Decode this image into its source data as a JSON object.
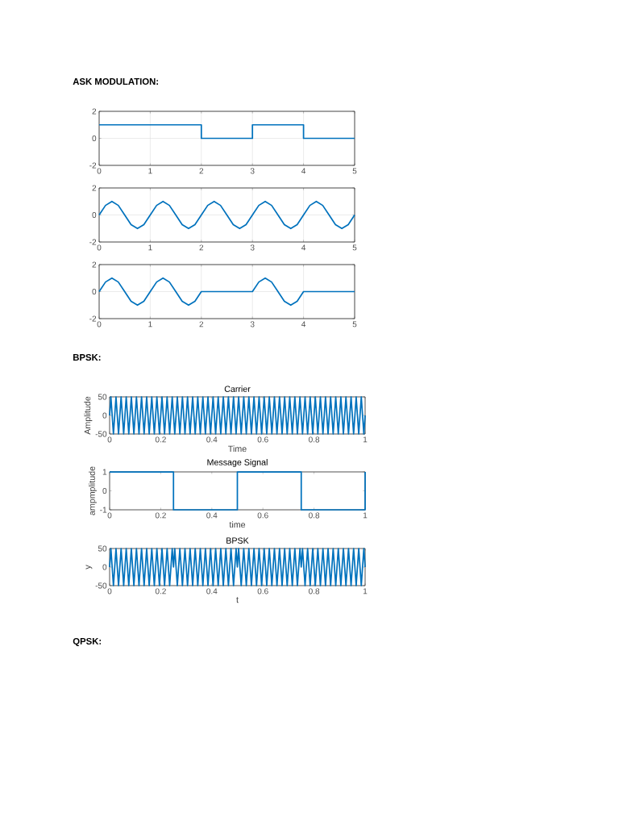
{
  "chart_data": [
    {
      "type": "line",
      "annotations": [
        "ASK MODULATION:"
      ],
      "color": "#0072bd",
      "grid": true,
      "xlim": [
        0,
        5
      ],
      "ylim": [
        -2,
        2
      ],
      "xticks": [
        0,
        1,
        2,
        3,
        4,
        5
      ],
      "yticks": [
        -2,
        0,
        2
      ],
      "x": [
        0,
        2,
        2,
        3,
        3,
        4,
        4,
        5
      ],
      "values": [
        1,
        1,
        0,
        0,
        1,
        1,
        0,
        0
      ]
    },
    {
      "type": "line",
      "color": "#0072bd",
      "grid": true,
      "xlim": [
        0,
        5
      ],
      "ylim": [
        -2,
        2
      ],
      "xticks": [
        0,
        1,
        2,
        3,
        4,
        5
      ],
      "yticks": [
        -2,
        0,
        2
      ],
      "x": [
        0,
        0.125,
        0.25,
        0.375,
        0.5,
        0.625,
        0.75,
        0.875,
        1,
        1.125,
        1.25,
        1.375,
        1.5,
        1.625,
        1.75,
        1.875,
        2,
        2.125,
        2.25,
        2.375,
        2.5,
        2.625,
        2.75,
        2.875,
        3,
        3.125,
        3.25,
        3.375,
        3.5,
        3.625,
        3.75,
        3.875,
        4,
        4.125,
        4.25,
        4.375,
        4.5,
        4.625,
        4.75,
        4.875,
        5
      ],
      "values": [
        0,
        0.71,
        1,
        0.71,
        0,
        -0.71,
        -1,
        -0.71,
        0,
        0.71,
        1,
        0.71,
        0,
        -0.71,
        -1,
        -0.71,
        0,
        0.71,
        1,
        0.71,
        0,
        -0.71,
        -1,
        -0.71,
        0,
        0.71,
        1,
        0.71,
        0,
        -0.71,
        -1,
        -0.71,
        0,
        0.71,
        1,
        0.71,
        0,
        -0.71,
        -1,
        -0.71,
        0
      ]
    },
    {
      "type": "line",
      "color": "#0072bd",
      "grid": true,
      "xlim": [
        0,
        5
      ],
      "ylim": [
        -2,
        2
      ],
      "xticks": [
        0,
        1,
        2,
        3,
        4,
        5
      ],
      "yticks": [
        -2,
        0,
        2
      ],
      "x": [
        0,
        0.125,
        0.25,
        0.375,
        0.5,
        0.625,
        0.75,
        0.875,
        1,
        1.125,
        1.25,
        1.375,
        1.5,
        1.625,
        1.75,
        1.875,
        2,
        3,
        3.125,
        3.25,
        3.375,
        3.5,
        3.625,
        3.75,
        3.875,
        4,
        5
      ],
      "values": [
        0,
        0.71,
        1,
        0.71,
        0,
        -0.71,
        -1,
        -0.71,
        0,
        0.71,
        1,
        0.71,
        0,
        -0.71,
        -1,
        -0.71,
        0,
        0,
        0.71,
        1,
        0.71,
        0,
        -0.71,
        -1,
        -0.71,
        0,
        0
      ]
    },
    {
      "type": "line",
      "title": "Carrier",
      "xlabel": "Time",
      "ylabel": "Amplitude",
      "annotations": [
        "BPSK:"
      ],
      "color": "#0072bd",
      "xlim": [
        0,
        1
      ],
      "ylim": [
        -50,
        50
      ],
      "xticks": [
        0,
        0.2,
        0.4,
        0.6,
        0.8,
        1
      ],
      "yticks": [
        -50,
        0,
        50
      ],
      "x": [
        0,
        0.005,
        0.015,
        0.025,
        0.035,
        0.045,
        0.055,
        0.065,
        0.075,
        0.085,
        0.095,
        0.105,
        0.115,
        0.125,
        0.135,
        0.145,
        0.155,
        0.165,
        0.175,
        0.185,
        0.195,
        0.205,
        0.215,
        0.225,
        0.235,
        0.245,
        0.255,
        0.265,
        0.275,
        0.285,
        0.295,
        0.305,
        0.315,
        0.325,
        0.335,
        0.345,
        0.355,
        0.365,
        0.375,
        0.385,
        0.395,
        0.405,
        0.415,
        0.425,
        0.435,
        0.445,
        0.455,
        0.465,
        0.475,
        0.485,
        0.495,
        0.505,
        0.515,
        0.525,
        0.535,
        0.545,
        0.555,
        0.565,
        0.575,
        0.585,
        0.595,
        0.605,
        0.615,
        0.625,
        0.635,
        0.645,
        0.655,
        0.665,
        0.675,
        0.685,
        0.695,
        0.705,
        0.715,
        0.725,
        0.735,
        0.745,
        0.755,
        0.765,
        0.775,
        0.785,
        0.795,
        0.805,
        0.815,
        0.825,
        0.835,
        0.845,
        0.855,
        0.865,
        0.875,
        0.885,
        0.895,
        0.905,
        0.915,
        0.925,
        0.935,
        0.945,
        0.955,
        0.965,
        0.975,
        0.985,
        0.995,
        1
      ],
      "values": [
        0,
        50,
        -50,
        50,
        -50,
        50,
        -50,
        50,
        -50,
        50,
        -50,
        50,
        -50,
        50,
        -50,
        50,
        -50,
        50,
        -50,
        50,
        -50,
        50,
        -50,
        50,
        -50,
        50,
        -50,
        50,
        -50,
        50,
        -50,
        50,
        -50,
        50,
        -50,
        50,
        -50,
        50,
        -50,
        50,
        -50,
        50,
        -50,
        50,
        -50,
        50,
        -50,
        50,
        -50,
        50,
        -50,
        50,
        -50,
        50,
        -50,
        50,
        -50,
        50,
        -50,
        50,
        -50,
        50,
        -50,
        50,
        -50,
        50,
        -50,
        50,
        -50,
        50,
        -50,
        50,
        -50,
        50,
        -50,
        50,
        -50,
        50,
        -50,
        50,
        -50,
        50,
        -50,
        50,
        -50,
        50,
        -50,
        50,
        -50,
        50,
        -50,
        50,
        -50,
        50,
        -50,
        50,
        -50,
        50,
        -50,
        50,
        -50,
        0
      ]
    },
    {
      "type": "line",
      "title": "Message Signal",
      "xlabel": "time",
      "ylabel": "ampmplitude",
      "color": "#0072bd",
      "xlim": [
        0,
        1
      ],
      "ylim": [
        -1,
        1
      ],
      "xticks": [
        0,
        0.2,
        0.4,
        0.6,
        0.8,
        1
      ],
      "yticks": [
        -1,
        0,
        1
      ],
      "x": [
        0,
        0.25,
        0.25,
        0.5,
        0.5,
        0.75,
        0.75,
        1,
        1
      ],
      "values": [
        1,
        1,
        -1,
        -1,
        1,
        1,
        -1,
        -1,
        1
      ]
    },
    {
      "type": "line",
      "title": "BPSK",
      "xlabel": "t",
      "ylabel": "y",
      "annotations": [
        "QPSK:"
      ],
      "color": "#0072bd",
      "xlim": [
        0,
        1
      ],
      "ylim": [
        -50,
        50
      ],
      "xticks": [
        0,
        0.2,
        0.4,
        0.6,
        0.8,
        1
      ],
      "yticks": [
        -50,
        0,
        50
      ],
      "x": [
        0,
        0.005,
        0.015,
        0.025,
        0.035,
        0.045,
        0.055,
        0.065,
        0.075,
        0.085,
        0.095,
        0.105,
        0.115,
        0.125,
        0.135,
        0.145,
        0.155,
        0.165,
        0.175,
        0.185,
        0.195,
        0.205,
        0.215,
        0.225,
        0.235,
        0.245,
        0.25,
        0.255,
        0.265,
        0.275,
        0.285,
        0.295,
        0.305,
        0.315,
        0.325,
        0.335,
        0.345,
        0.355,
        0.365,
        0.375,
        0.385,
        0.395,
        0.405,
        0.415,
        0.425,
        0.435,
        0.445,
        0.455,
        0.465,
        0.475,
        0.485,
        0.495,
        0.5,
        0.505,
        0.515,
        0.525,
        0.535,
        0.545,
        0.555,
        0.565,
        0.575,
        0.585,
        0.595,
        0.605,
        0.615,
        0.625,
        0.635,
        0.645,
        0.655,
        0.665,
        0.675,
        0.685,
        0.695,
        0.705,
        0.715,
        0.725,
        0.735,
        0.745,
        0.75,
        0.755,
        0.765,
        0.775,
        0.785,
        0.795,
        0.805,
        0.815,
        0.825,
        0.835,
        0.845,
        0.855,
        0.865,
        0.875,
        0.885,
        0.895,
        0.905,
        0.915,
        0.925,
        0.935,
        0.945,
        0.955,
        0.965,
        0.975,
        0.985,
        0.995,
        1
      ],
      "values": [
        0,
        50,
        -50,
        50,
        -50,
        50,
        -50,
        50,
        -50,
        50,
        -50,
        50,
        -50,
        50,
        -50,
        50,
        -50,
        50,
        -50,
        50,
        -50,
        50,
        -50,
        50,
        -50,
        50,
        0,
        50,
        -50,
        50,
        -50,
        50,
        -50,
        50,
        -50,
        50,
        -50,
        50,
        -50,
        50,
        -50,
        50,
        -50,
        50,
        -50,
        50,
        -50,
        50,
        -50,
        50,
        -50,
        50,
        0,
        50,
        -50,
        50,
        -50,
        50,
        -50,
        50,
        -50,
        50,
        -50,
        50,
        -50,
        50,
        -50,
        50,
        -50,
        50,
        -50,
        50,
        -50,
        50,
        -50,
        50,
        -50,
        50,
        0,
        50,
        -50,
        50,
        -50,
        50,
        -50,
        50,
        -50,
        50,
        -50,
        50,
        -50,
        50,
        -50,
        50,
        -50,
        50,
        -50,
        50,
        -50,
        50,
        -50,
        50,
        -50,
        50,
        0
      ]
    }
  ]
}
